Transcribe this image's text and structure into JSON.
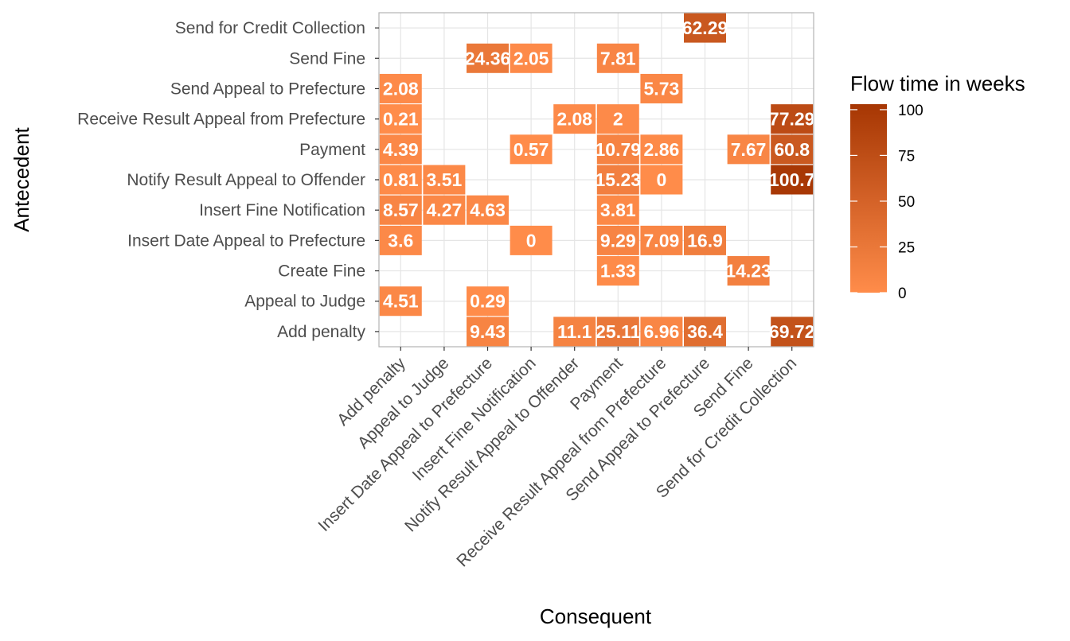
{
  "chart_data": {
    "type": "heatmap",
    "xlabel": "Consequent",
    "ylabel": "Antecedent",
    "x_categories": [
      "Add penalty",
      "Appeal to Judge",
      "Insert Date Appeal to Prefecture",
      "Insert Fine Notification",
      "Notify Result Appeal to Offender",
      "Payment",
      "Receive Result Appeal from Prefecture",
      "Send Appeal to Prefecture",
      "Send Fine",
      "Send for Credit Collection"
    ],
    "y_categories": [
      "Add penalty",
      "Appeal to Judge",
      "Create Fine",
      "Insert Date Appeal to Prefecture",
      "Insert Fine Notification",
      "Notify Result Appeal to Offender",
      "Payment",
      "Receive Result Appeal from Prefecture",
      "Send Appeal to Prefecture",
      "Send Fine",
      "Send for Credit Collection"
    ],
    "cells": [
      {
        "x": "Send Appeal to Prefecture",
        "y": "Send for Credit Collection",
        "value": 62.29,
        "label": "62.29"
      },
      {
        "x": "Insert Date Appeal to Prefecture",
        "y": "Send Fine",
        "value": 24.36,
        "label": "24.36"
      },
      {
        "x": "Insert Fine Notification",
        "y": "Send Fine",
        "value": 2.05,
        "label": "2.05"
      },
      {
        "x": "Payment",
        "y": "Send Fine",
        "value": 7.81,
        "label": "7.81"
      },
      {
        "x": "Add penalty",
        "y": "Send Appeal to Prefecture",
        "value": 2.08,
        "label": "2.08"
      },
      {
        "x": "Receive Result Appeal from Prefecture",
        "y": "Send Appeal to Prefecture",
        "value": 5.73,
        "label": "5.73"
      },
      {
        "x": "Add penalty",
        "y": "Receive Result Appeal from Prefecture",
        "value": 0.21,
        "label": "0.21"
      },
      {
        "x": "Notify Result Appeal to Offender",
        "y": "Receive Result Appeal from Prefecture",
        "value": 2.08,
        "label": "2.08"
      },
      {
        "x": "Payment",
        "y": "Receive Result Appeal from Prefecture",
        "value": 2,
        "label": "2"
      },
      {
        "x": "Send for Credit Collection",
        "y": "Receive Result Appeal from Prefecture",
        "value": 77.29,
        "label": "77.29"
      },
      {
        "x": "Add penalty",
        "y": "Payment",
        "value": 4.39,
        "label": "4.39"
      },
      {
        "x": "Insert Fine Notification",
        "y": "Payment",
        "value": 0.57,
        "label": "0.57"
      },
      {
        "x": "Payment",
        "y": "Payment",
        "value": 10.79,
        "label": "10.79"
      },
      {
        "x": "Receive Result Appeal from Prefecture",
        "y": "Payment",
        "value": 2.86,
        "label": "2.86"
      },
      {
        "x": "Send Fine",
        "y": "Payment",
        "value": 7.67,
        "label": "7.67"
      },
      {
        "x": "Send for Credit Collection",
        "y": "Payment",
        "value": 60.8,
        "label": "60.8"
      },
      {
        "x": "Add penalty",
        "y": "Notify Result Appeal to Offender",
        "value": 0.81,
        "label": "0.81"
      },
      {
        "x": "Appeal to Judge",
        "y": "Notify Result Appeal to Offender",
        "value": 3.51,
        "label": "3.51"
      },
      {
        "x": "Payment",
        "y": "Notify Result Appeal to Offender",
        "value": 15.23,
        "label": "15.23"
      },
      {
        "x": "Receive Result Appeal from Prefecture",
        "y": "Notify Result Appeal to Offender",
        "value": 0,
        "label": "0"
      },
      {
        "x": "Send for Credit Collection",
        "y": "Notify Result Appeal to Offender",
        "value": 100.7,
        "label": "100.7"
      },
      {
        "x": "Add penalty",
        "y": "Insert Fine Notification",
        "value": 8.57,
        "label": "8.57"
      },
      {
        "x": "Appeal to Judge",
        "y": "Insert Fine Notification",
        "value": 4.27,
        "label": "4.27"
      },
      {
        "x": "Insert Date Appeal to Prefecture",
        "y": "Insert Fine Notification",
        "value": 4.63,
        "label": "4.63"
      },
      {
        "x": "Payment",
        "y": "Insert Fine Notification",
        "value": 3.81,
        "label": "3.81"
      },
      {
        "x": "Add penalty",
        "y": "Insert Date Appeal to Prefecture",
        "value": 3.6,
        "label": "3.6"
      },
      {
        "x": "Insert Fine Notification",
        "y": "Insert Date Appeal to Prefecture",
        "value": 0,
        "label": "0"
      },
      {
        "x": "Payment",
        "y": "Insert Date Appeal to Prefecture",
        "value": 9.29,
        "label": "9.29"
      },
      {
        "x": "Receive Result Appeal from Prefecture",
        "y": "Insert Date Appeal to Prefecture",
        "value": 7.09,
        "label": "7.09"
      },
      {
        "x": "Send Appeal to Prefecture",
        "y": "Insert Date Appeal to Prefecture",
        "value": 16.9,
        "label": "16.9"
      },
      {
        "x": "Payment",
        "y": "Create Fine",
        "value": 1.33,
        "label": "1.33"
      },
      {
        "x": "Send Fine",
        "y": "Create Fine",
        "value": 14.23,
        "label": "14.23"
      },
      {
        "x": "Add penalty",
        "y": "Appeal to Judge",
        "value": 4.51,
        "label": "4.51"
      },
      {
        "x": "Insert Date Appeal to Prefecture",
        "y": "Appeal to Judge",
        "value": 0.29,
        "label": "0.29"
      },
      {
        "x": "Insert Date Appeal to Prefecture",
        "y": "Add penalty",
        "value": 9.43,
        "label": "9.43"
      },
      {
        "x": "Notify Result Appeal to Offender",
        "y": "Add penalty",
        "value": 11.1,
        "label": "11.1"
      },
      {
        "x": "Payment",
        "y": "Add penalty",
        "value": 25.11,
        "label": "25.11"
      },
      {
        "x": "Receive Result Appeal from Prefecture",
        "y": "Add penalty",
        "value": 6.96,
        "label": "6.96"
      },
      {
        "x": "Send Appeal to Prefecture",
        "y": "Add penalty",
        "value": 36.4,
        "label": "36.4"
      },
      {
        "x": "Send for Credit Collection",
        "y": "Add penalty",
        "value": 69.72,
        "label": "69.72"
      }
    ],
    "legend": {
      "title": "Flow time in weeks",
      "ticks": [
        "0",
        "25",
        "50",
        "75",
        "100"
      ],
      "tick_values": [
        0,
        25,
        50,
        75,
        100
      ],
      "range": [
        0,
        103
      ],
      "color_low": "#ff8c4a",
      "color_high": "#a63603"
    },
    "grid": true,
    "legend_position": "right"
  }
}
